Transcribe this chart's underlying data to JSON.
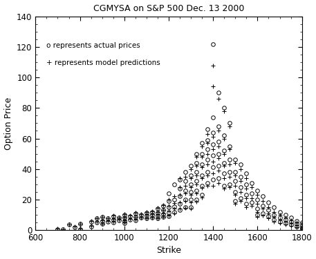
{
  "title": "CGMYSA on S&P 500 Dec. 13 2000",
  "xlabel": "Strike",
  "ylabel": "Option Price",
  "xlim": [
    600,
    1800
  ],
  "ylim": [
    0,
    140
  ],
  "xticks": [
    600,
    800,
    1000,
    1200,
    1400,
    1600,
    1800
  ],
  "yticks": [
    0,
    20,
    40,
    60,
    80,
    100,
    120,
    140
  ],
  "legend_text_actual": "o represents actual prices",
  "legend_text_model": "+ represents model predictions",
  "actual_prices": [
    [
      700,
      0.5
    ],
    [
      725,
      0.3
    ],
    [
      750,
      3.5
    ],
    [
      775,
      2.0
    ],
    [
      800,
      4.0
    ],
    [
      800,
      0.5
    ],
    [
      850,
      5.5
    ],
    [
      850,
      2.5
    ],
    [
      875,
      7.5
    ],
    [
      875,
      5.0
    ],
    [
      900,
      8.5
    ],
    [
      900,
      6.0
    ],
    [
      900,
      4.0
    ],
    [
      925,
      7.5
    ],
    [
      925,
      5.5
    ],
    [
      950,
      9.0
    ],
    [
      950,
      7.0
    ],
    [
      950,
      5.0
    ],
    [
      975,
      8.0
    ],
    [
      975,
      6.5
    ],
    [
      1000,
      10.0
    ],
    [
      1000,
      8.0
    ],
    [
      1000,
      6.0
    ],
    [
      1000,
      4.5
    ],
    [
      1025,
      9.0
    ],
    [
      1025,
      7.0
    ],
    [
      1050,
      11.0
    ],
    [
      1050,
      8.5
    ],
    [
      1050,
      6.5
    ],
    [
      1075,
      10.0
    ],
    [
      1075,
      8.0
    ],
    [
      1100,
      11.5
    ],
    [
      1100,
      9.5
    ],
    [
      1100,
      7.5
    ],
    [
      1125,
      12.0
    ],
    [
      1125,
      10.0
    ],
    [
      1125,
      8.0
    ],
    [
      1150,
      14.0
    ],
    [
      1150,
      11.5
    ],
    [
      1150,
      9.5
    ],
    [
      1150,
      7.5
    ],
    [
      1175,
      16.0
    ],
    [
      1175,
      13.0
    ],
    [
      1175,
      10.5
    ],
    [
      1175,
      8.5
    ],
    [
      1200,
      24.0
    ],
    [
      1200,
      19.0
    ],
    [
      1200,
      15.0
    ],
    [
      1200,
      11.5
    ],
    [
      1200,
      9.0
    ],
    [
      1225,
      30.0
    ],
    [
      1225,
      20.0
    ],
    [
      1225,
      15.5
    ],
    [
      1225,
      12.0
    ],
    [
      1250,
      33.0
    ],
    [
      1250,
      27.0
    ],
    [
      1250,
      22.0
    ],
    [
      1250,
      17.0
    ],
    [
      1250,
      13.0
    ],
    [
      1275,
      38.0
    ],
    [
      1275,
      32.0
    ],
    [
      1275,
      26.0
    ],
    [
      1275,
      20.0
    ],
    [
      1275,
      15.0
    ],
    [
      1300,
      42.0
    ],
    [
      1300,
      36.0
    ],
    [
      1300,
      30.0
    ],
    [
      1300,
      25.0
    ],
    [
      1300,
      20.0
    ],
    [
      1300,
      15.0
    ],
    [
      1325,
      50.0
    ],
    [
      1325,
      44.0
    ],
    [
      1325,
      38.0
    ],
    [
      1325,
      32.0
    ],
    [
      1325,
      26.0
    ],
    [
      1325,
      20.0
    ],
    [
      1350,
      57.0
    ],
    [
      1350,
      50.0
    ],
    [
      1350,
      43.0
    ],
    [
      1350,
      36.0
    ],
    [
      1350,
      29.0
    ],
    [
      1350,
      23.0
    ],
    [
      1375,
      66.0
    ],
    [
      1375,
      59.0
    ],
    [
      1375,
      53.0
    ],
    [
      1375,
      46.0
    ],
    [
      1375,
      38.0
    ],
    [
      1375,
      31.0
    ],
    [
      1400,
      122.0
    ],
    [
      1400,
      74.0
    ],
    [
      1400,
      64.0
    ],
    [
      1400,
      56.0
    ],
    [
      1400,
      49.0
    ],
    [
      1400,
      41.0
    ],
    [
      1400,
      33.0
    ],
    [
      1425,
      90.0
    ],
    [
      1425,
      68.0
    ],
    [
      1425,
      58.0
    ],
    [
      1425,
      50.0
    ],
    [
      1425,
      42.0
    ],
    [
      1425,
      34.0
    ],
    [
      1450,
      80.0
    ],
    [
      1450,
      62.0
    ],
    [
      1450,
      52.0
    ],
    [
      1450,
      44.0
    ],
    [
      1450,
      37.0
    ],
    [
      1450,
      29.0
    ],
    [
      1475,
      70.0
    ],
    [
      1475,
      55.0
    ],
    [
      1475,
      46.0
    ],
    [
      1475,
      38.0
    ],
    [
      1475,
      30.0
    ],
    [
      1500,
      46.0
    ],
    [
      1500,
      38.0
    ],
    [
      1500,
      32.0
    ],
    [
      1500,
      25.0
    ],
    [
      1500,
      19.0
    ],
    [
      1525,
      43.0
    ],
    [
      1525,
      35.0
    ],
    [
      1525,
      28.0
    ],
    [
      1525,
      21.0
    ],
    [
      1550,
      37.0
    ],
    [
      1550,
      30.0
    ],
    [
      1550,
      23.0
    ],
    [
      1550,
      17.0
    ],
    [
      1575,
      31.0
    ],
    [
      1575,
      24.0
    ],
    [
      1575,
      18.0
    ],
    [
      1600,
      26.0
    ],
    [
      1600,
      20.0
    ],
    [
      1600,
      14.0
    ],
    [
      1600,
      10.0
    ],
    [
      1625,
      22.0
    ],
    [
      1625,
      16.0
    ],
    [
      1625,
      11.0
    ],
    [
      1650,
      18.0
    ],
    [
      1650,
      13.0
    ],
    [
      1650,
      9.0
    ],
    [
      1675,
      15.0
    ],
    [
      1675,
      10.0
    ],
    [
      1675,
      7.0
    ],
    [
      1700,
      12.0
    ],
    [
      1700,
      8.0
    ],
    [
      1700,
      5.5
    ],
    [
      1725,
      10.0
    ],
    [
      1725,
      7.0
    ],
    [
      1725,
      4.5
    ],
    [
      1750,
      8.0
    ],
    [
      1750,
      5.5
    ],
    [
      1750,
      3.5
    ],
    [
      1775,
      6.0
    ],
    [
      1775,
      4.0
    ],
    [
      1775,
      2.5
    ],
    [
      1800,
      5.0
    ],
    [
      1800,
      3.0
    ],
    [
      1800,
      2.0
    ],
    [
      1800,
      1.0
    ]
  ],
  "model_predictions": [
    [
      700,
      0.8
    ],
    [
      725,
      0.5
    ],
    [
      750,
      3.8
    ],
    [
      775,
      2.5
    ],
    [
      800,
      4.3
    ],
    [
      800,
      1.0
    ],
    [
      850,
      5.8
    ],
    [
      850,
      2.8
    ],
    [
      875,
      7.8
    ],
    [
      875,
      5.3
    ],
    [
      900,
      8.8
    ],
    [
      900,
      6.3
    ],
    [
      900,
      4.3
    ],
    [
      925,
      7.8
    ],
    [
      925,
      5.8
    ],
    [
      950,
      9.3
    ],
    [
      950,
      7.3
    ],
    [
      950,
      5.3
    ],
    [
      975,
      8.3
    ],
    [
      975,
      6.8
    ],
    [
      1000,
      10.3
    ],
    [
      1000,
      8.3
    ],
    [
      1000,
      6.3
    ],
    [
      1000,
      4.8
    ],
    [
      1025,
      9.3
    ],
    [
      1025,
      7.3
    ],
    [
      1050,
      11.3
    ],
    [
      1050,
      8.8
    ],
    [
      1050,
      6.8
    ],
    [
      1075,
      10.3
    ],
    [
      1075,
      8.3
    ],
    [
      1100,
      11.8
    ],
    [
      1100,
      9.8
    ],
    [
      1100,
      7.8
    ],
    [
      1125,
      12.3
    ],
    [
      1125,
      10.3
    ],
    [
      1125,
      8.3
    ],
    [
      1150,
      14.3
    ],
    [
      1150,
      11.8
    ],
    [
      1150,
      9.8
    ],
    [
      1150,
      7.8
    ],
    [
      1175,
      16.3
    ],
    [
      1175,
      13.3
    ],
    [
      1175,
      10.8
    ],
    [
      1175,
      8.8
    ],
    [
      1200,
      20.0
    ],
    [
      1200,
      16.0
    ],
    [
      1200,
      12.5
    ],
    [
      1200,
      9.5
    ],
    [
      1225,
      22.0
    ],
    [
      1225,
      17.5
    ],
    [
      1225,
      14.0
    ],
    [
      1225,
      11.0
    ],
    [
      1250,
      34.0
    ],
    [
      1250,
      28.0
    ],
    [
      1250,
      23.0
    ],
    [
      1250,
      18.0
    ],
    [
      1250,
      14.0
    ],
    [
      1275,
      35.0
    ],
    [
      1275,
      29.0
    ],
    [
      1275,
      24.0
    ],
    [
      1275,
      19.0
    ],
    [
      1275,
      14.5
    ],
    [
      1300,
      40.0
    ],
    [
      1300,
      34.0
    ],
    [
      1300,
      28.0
    ],
    [
      1300,
      23.0
    ],
    [
      1300,
      18.0
    ],
    [
      1300,
      14.0
    ],
    [
      1325,
      48.0
    ],
    [
      1325,
      42.0
    ],
    [
      1325,
      36.0
    ],
    [
      1325,
      30.0
    ],
    [
      1325,
      24.0
    ],
    [
      1325,
      18.5
    ],
    [
      1350,
      55.0
    ],
    [
      1350,
      48.0
    ],
    [
      1350,
      41.0
    ],
    [
      1350,
      34.0
    ],
    [
      1350,
      27.5
    ],
    [
      1350,
      21.5
    ],
    [
      1375,
      63.0
    ],
    [
      1375,
      57.0
    ],
    [
      1375,
      50.0
    ],
    [
      1375,
      43.0
    ],
    [
      1375,
      36.0
    ],
    [
      1375,
      29.0
    ],
    [
      1400,
      108.0
    ],
    [
      1400,
      94.0
    ],
    [
      1400,
      61.0
    ],
    [
      1400,
      53.0
    ],
    [
      1400,
      45.0
    ],
    [
      1400,
      37.0
    ],
    [
      1400,
      29.0
    ],
    [
      1425,
      86.0
    ],
    [
      1425,
      65.0
    ],
    [
      1425,
      55.0
    ],
    [
      1425,
      47.0
    ],
    [
      1425,
      39.0
    ],
    [
      1425,
      31.0
    ],
    [
      1450,
      78.0
    ],
    [
      1450,
      60.0
    ],
    [
      1450,
      50.0
    ],
    [
      1450,
      42.0
    ],
    [
      1450,
      34.0
    ],
    [
      1450,
      27.0
    ],
    [
      1475,
      68.0
    ],
    [
      1475,
      53.0
    ],
    [
      1475,
      43.0
    ],
    [
      1475,
      35.0
    ],
    [
      1475,
      28.0
    ],
    [
      1500,
      44.0
    ],
    [
      1500,
      36.0
    ],
    [
      1500,
      29.0
    ],
    [
      1500,
      23.0
    ],
    [
      1500,
      17.0
    ],
    [
      1525,
      40.0
    ],
    [
      1525,
      32.0
    ],
    [
      1525,
      25.0
    ],
    [
      1525,
      19.0
    ],
    [
      1550,
      34.0
    ],
    [
      1550,
      27.0
    ],
    [
      1550,
      21.0
    ],
    [
      1550,
      15.0
    ],
    [
      1575,
      28.0
    ],
    [
      1575,
      21.0
    ],
    [
      1575,
      16.0
    ],
    [
      1600,
      23.0
    ],
    [
      1600,
      17.0
    ],
    [
      1600,
      12.0
    ],
    [
      1600,
      8.5
    ],
    [
      1625,
      19.0
    ],
    [
      1625,
      14.0
    ],
    [
      1625,
      9.5
    ],
    [
      1650,
      15.0
    ],
    [
      1650,
      11.0
    ],
    [
      1650,
      7.5
    ],
    [
      1675,
      12.0
    ],
    [
      1675,
      8.5
    ],
    [
      1675,
      5.5
    ],
    [
      1700,
      10.0
    ],
    [
      1700,
      7.0
    ],
    [
      1700,
      4.5
    ],
    [
      1725,
      8.0
    ],
    [
      1725,
      5.5
    ],
    [
      1725,
      3.5
    ],
    [
      1750,
      6.5
    ],
    [
      1750,
      4.5
    ],
    [
      1750,
      2.8
    ],
    [
      1775,
      5.0
    ],
    [
      1775,
      3.3
    ],
    [
      1775,
      1.8
    ],
    [
      1800,
      4.0
    ],
    [
      1800,
      2.3
    ],
    [
      1800,
      1.3
    ],
    [
      1800,
      0.6
    ]
  ]
}
